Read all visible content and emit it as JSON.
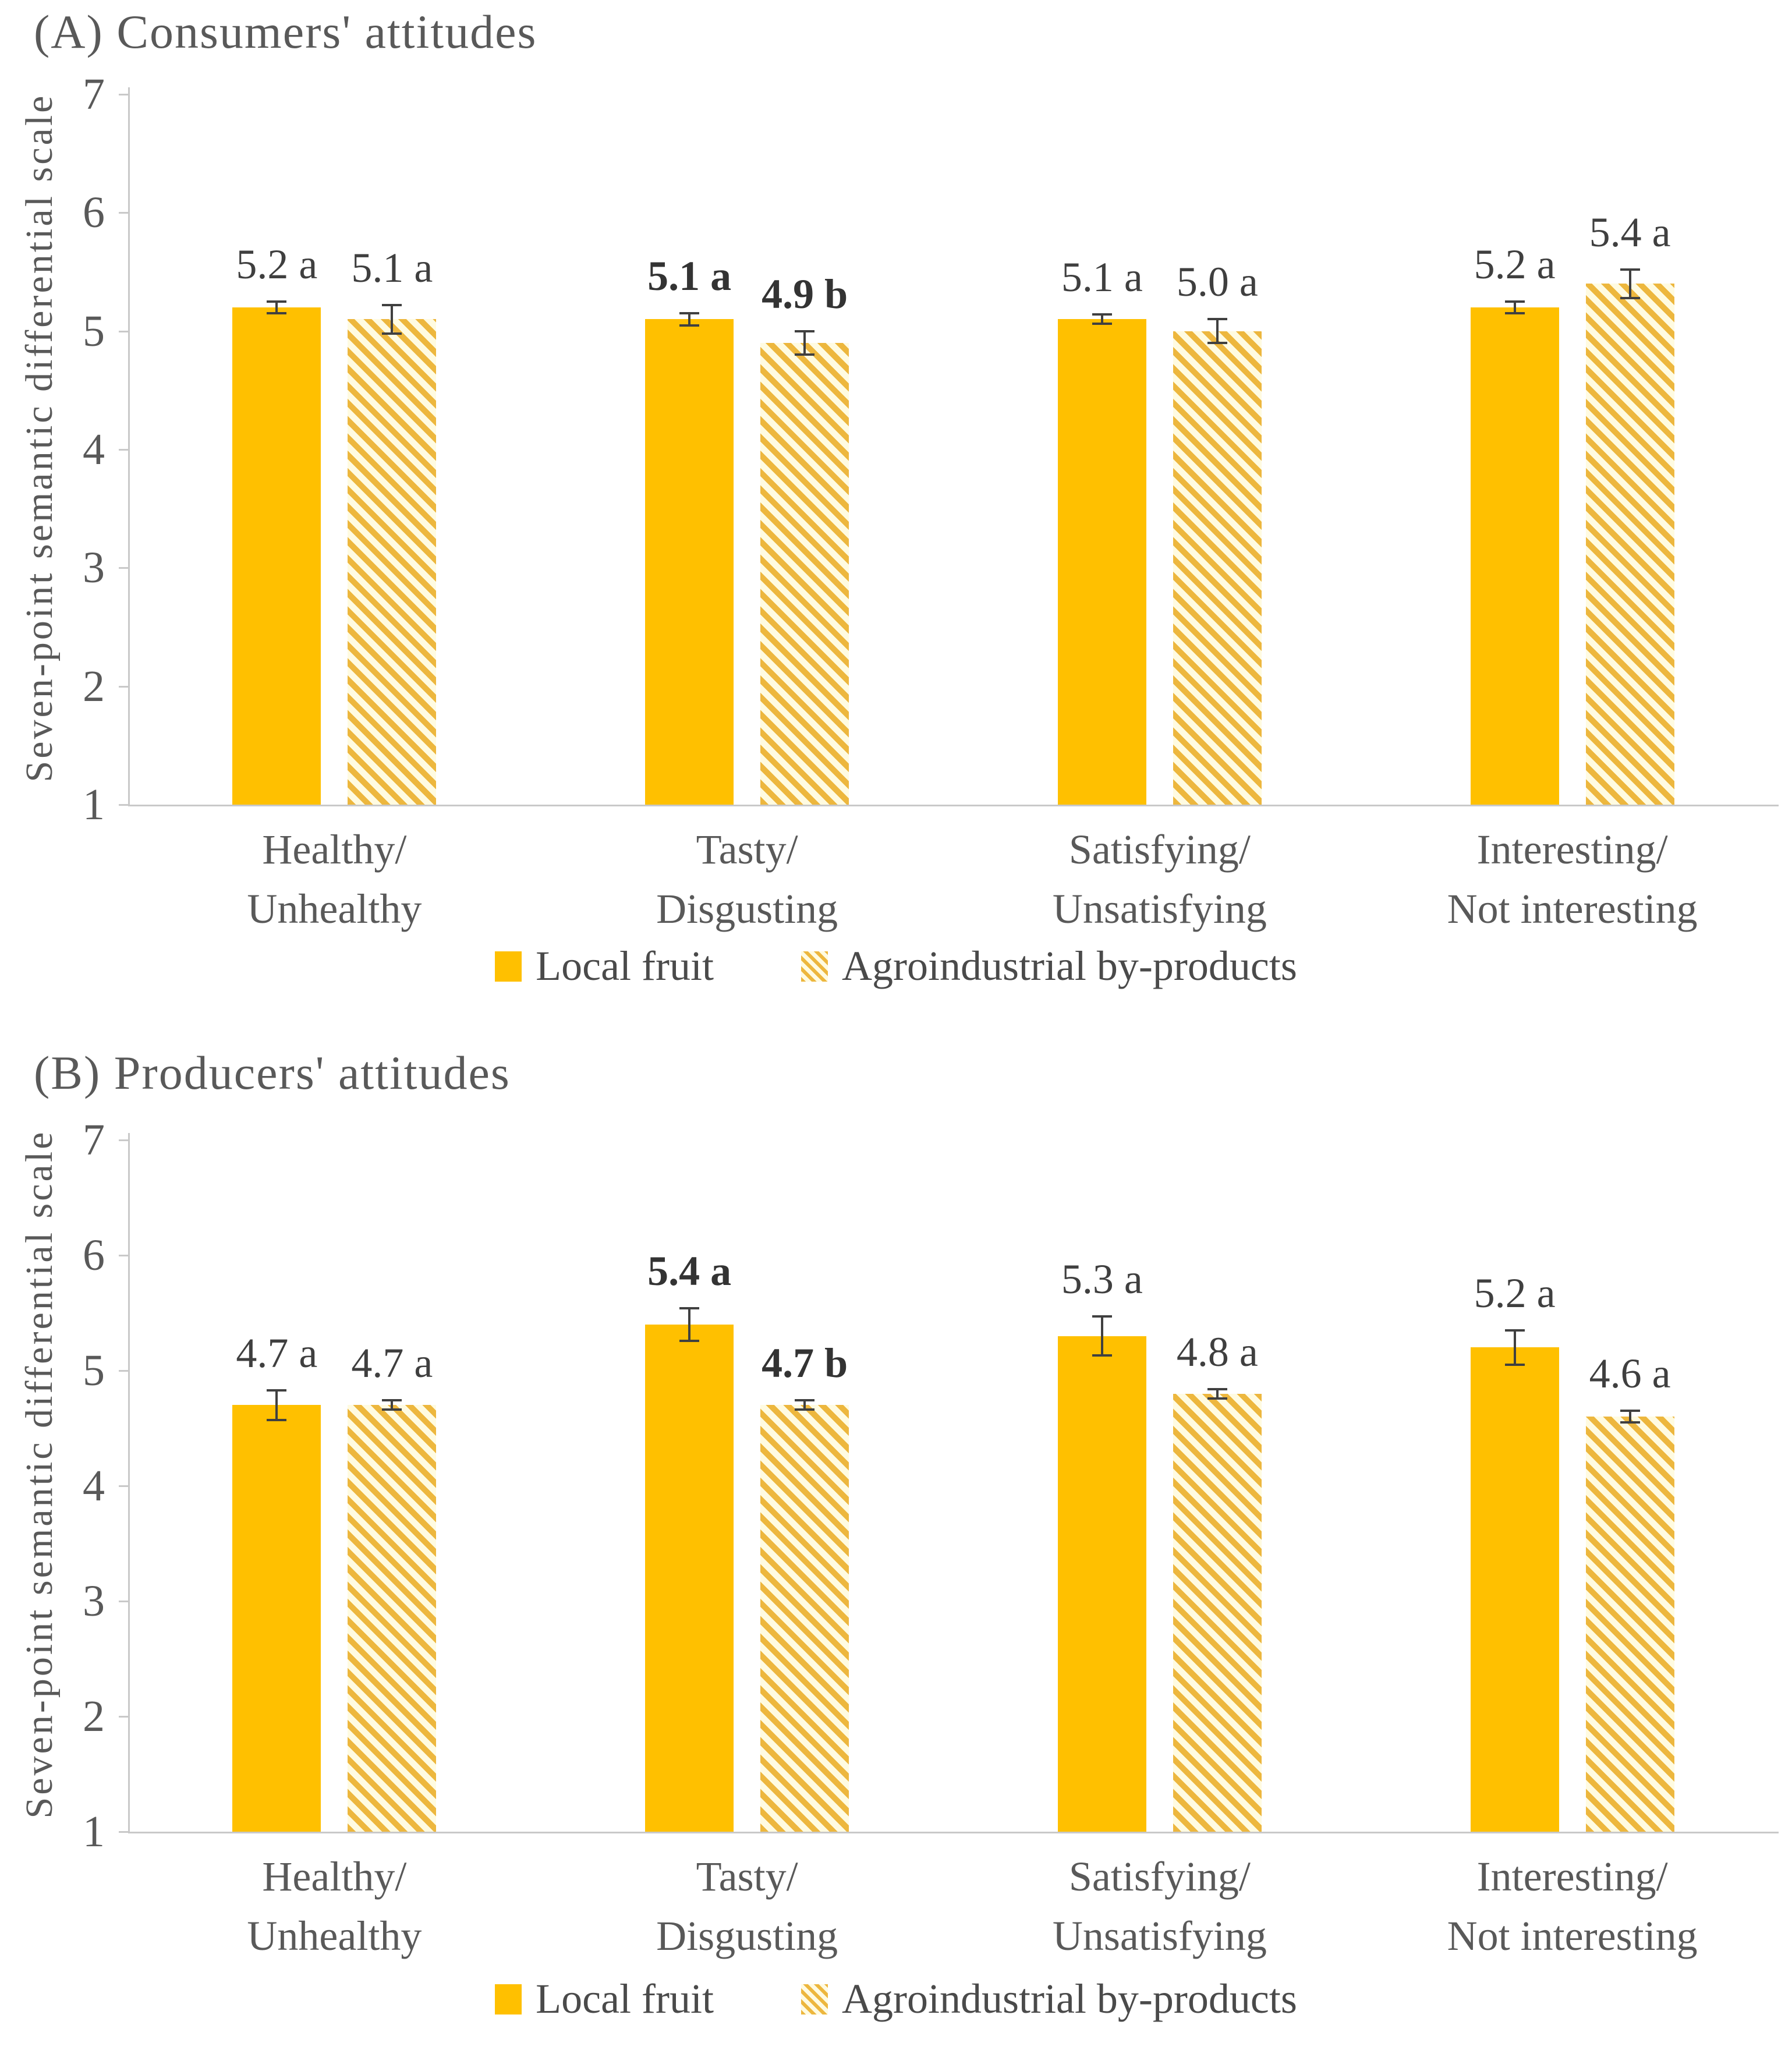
{
  "colors": {
    "solid_bar": "#FFC000",
    "hatch_stripe": "#EDB73E",
    "hatch_background": "#FFFBE1",
    "axis": "#C9C9C9",
    "text_gray": "#595959",
    "value_label": "#3F3F3F",
    "error_bar": "#404040"
  },
  "legend": {
    "items": [
      {
        "label": "Local fruit",
        "pattern": "solid",
        "swatch": "solid-gold-square"
      },
      {
        "label": "Agroindustrial by-products",
        "pattern": "hatched",
        "swatch": "diagonal-hatch-square"
      }
    ]
  },
  "chart_data": [
    {
      "id": "A",
      "type": "bar",
      "title": "(A) Consumers' attitudes",
      "ylabel": "Seven-point semantic differential scale",
      "ylim": [
        1,
        7
      ],
      "yticks": [
        1,
        2,
        3,
        4,
        5,
        6,
        7
      ],
      "grid": "off",
      "legend_position": "bottom-center",
      "categories": [
        [
          "Healthy/",
          "Unhealthy"
        ],
        [
          "Tasty/",
          "Disgusting"
        ],
        [
          "Satisfying/",
          "Unsatisfying"
        ],
        [
          "Interesting/",
          "Not interesting"
        ]
      ],
      "series": [
        {
          "name": "Local fruit",
          "pattern": "solid",
          "values": [
            5.2,
            5.1,
            5.1,
            5.2
          ],
          "errors": [
            0.05,
            0.05,
            0.04,
            0.05
          ],
          "labels": [
            "5.2 a",
            "5.1 a",
            "5.1 a",
            "5.2 a"
          ],
          "bold": [
            false,
            true,
            false,
            false
          ]
        },
        {
          "name": "Agroindustrial by-products",
          "pattern": "hatched",
          "values": [
            5.1,
            4.9,
            5.0,
            5.4
          ],
          "errors": [
            0.12,
            0.1,
            0.1,
            0.12
          ],
          "labels": [
            "5.1 a",
            "4.9 b",
            "5.0 a",
            "5.4 a"
          ],
          "bold": [
            false,
            true,
            false,
            false
          ]
        }
      ]
    },
    {
      "id": "B",
      "type": "bar",
      "title": "(B) Producers' attitudes",
      "ylabel": "Seven-point semantic differential scale",
      "ylim": [
        1,
        7
      ],
      "yticks": [
        1,
        2,
        3,
        4,
        5,
        6,
        7
      ],
      "grid": "off",
      "legend_position": "bottom-center",
      "categories": [
        [
          "Healthy/",
          "Unhealthy"
        ],
        [
          "Tasty/",
          "Disgusting"
        ],
        [
          "Satisfying/",
          "Unsatisfying"
        ],
        [
          "Interesting/",
          "Not interesting"
        ]
      ],
      "series": [
        {
          "name": "Local fruit",
          "pattern": "solid",
          "values": [
            4.7,
            5.4,
            5.3,
            5.2
          ],
          "errors": [
            0.13,
            0.14,
            0.17,
            0.15
          ],
          "labels": [
            "4.7 a",
            "5.4 a",
            "5.3 a",
            "5.2 a"
          ],
          "bold": [
            false,
            true,
            false,
            false
          ]
        },
        {
          "name": "Agroindustrial by-products",
          "pattern": "hatched",
          "values": [
            4.7,
            4.7,
            4.8,
            4.6
          ],
          "errors": [
            0.04,
            0.04,
            0.04,
            0.05
          ],
          "labels": [
            "4.7 a",
            "4.7 b",
            "4.8 a",
            "4.6 a"
          ],
          "bold": [
            false,
            true,
            false,
            false
          ]
        }
      ]
    }
  ]
}
